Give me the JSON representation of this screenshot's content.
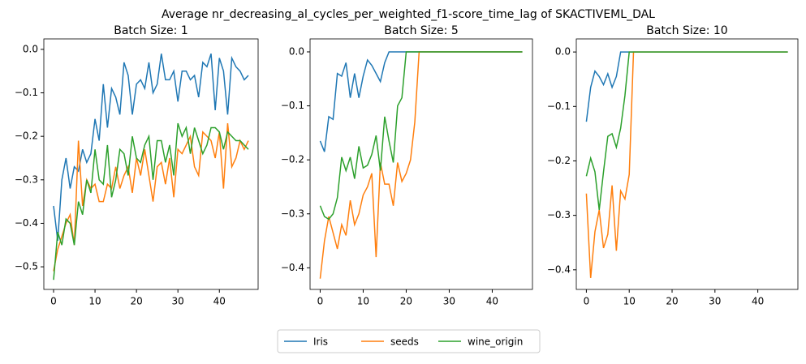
{
  "title": "Average nr_decreasing_al_cycles_per_weighted_f1-score_time_lag of SKACTIVEML_DAL",
  "legend": "lower center",
  "chart_data": [
    {
      "type": "line",
      "title": "Batch Size: 1",
      "x": [
        0,
        1,
        2,
        3,
        4,
        5,
        6,
        7,
        8,
        9,
        10,
        11,
        12,
        13,
        14,
        15,
        16,
        17,
        18,
        19,
        20,
        21,
        22,
        23,
        24,
        25,
        26,
        27,
        28,
        29,
        30,
        31,
        32,
        33,
        34,
        35,
        36,
        37,
        38,
        39,
        40,
        41,
        42,
        43,
        44,
        45,
        46,
        47
      ],
      "xlim": [
        -2.35,
        49.35
      ],
      "xticks": [
        0,
        10,
        20,
        30,
        40
      ],
      "ylim": [
        -0.552,
        0.024
      ],
      "yticks": [
        {
          "value": -0.5,
          "label": "−0.5"
        },
        {
          "value": -0.4,
          "label": "−0.4"
        },
        {
          "value": -0.3,
          "label": "−0.3"
        },
        {
          "value": -0.2,
          "label": "−0.2"
        },
        {
          "value": -0.1,
          "label": "−0.1"
        },
        {
          "value": 0,
          "label": "0.0"
        }
      ],
      "series": [
        {
          "name": "Iris",
          "color": "#1f77b4",
          "values": [
            -0.36,
            -0.44,
            -0.3,
            -0.25,
            -0.32,
            -0.27,
            -0.28,
            -0.23,
            -0.26,
            -0.24,
            -0.16,
            -0.21,
            -0.08,
            -0.18,
            -0.09,
            -0.11,
            -0.15,
            -0.03,
            -0.06,
            -0.15,
            -0.08,
            -0.07,
            -0.09,
            -0.03,
            -0.1,
            -0.08,
            -0.01,
            -0.07,
            -0.07,
            -0.05,
            -0.12,
            -0.05,
            -0.05,
            -0.07,
            -0.06,
            -0.11,
            -0.03,
            -0.04,
            -0.01,
            -0.14,
            -0.02,
            -0.05,
            -0.15,
            -0.02,
            -0.04,
            -0.05,
            -0.07,
            -0.06
          ]
        },
        {
          "name": "seeds",
          "color": "#ff7f0e",
          "values": [
            -0.51,
            -0.46,
            -0.43,
            -0.4,
            -0.38,
            -0.45,
            -0.21,
            -0.36,
            -0.3,
            -0.32,
            -0.31,
            -0.35,
            -0.35,
            -0.31,
            -0.32,
            -0.27,
            -0.32,
            -0.29,
            -0.27,
            -0.33,
            -0.25,
            -0.29,
            -0.23,
            -0.29,
            -0.35,
            -0.27,
            -0.26,
            -0.31,
            -0.25,
            -0.34,
            -0.23,
            -0.24,
            -0.22,
            -0.2,
            -0.27,
            -0.29,
            -0.19,
            -0.2,
            -0.21,
            -0.25,
            -0.19,
            -0.32,
            -0.17,
            -0.27,
            -0.25,
            -0.21,
            -0.23,
            -0.21
          ]
        },
        {
          "name": "wine_origin",
          "color": "#2ca02c",
          "values": [
            -0.53,
            -0.42,
            -0.45,
            -0.39,
            -0.4,
            -0.45,
            -0.35,
            -0.38,
            -0.3,
            -0.33,
            -0.23,
            -0.3,
            -0.31,
            -0.22,
            -0.34,
            -0.3,
            -0.23,
            -0.24,
            -0.29,
            -0.2,
            -0.25,
            -0.26,
            -0.22,
            -0.2,
            -0.3,
            -0.21,
            -0.21,
            -0.26,
            -0.22,
            -0.29,
            -0.17,
            -0.2,
            -0.18,
            -0.24,
            -0.18,
            -0.21,
            -0.24,
            -0.22,
            -0.18,
            -0.18,
            -0.19,
            -0.23,
            -0.19,
            -0.2,
            -0.21,
            -0.21,
            -0.22,
            -0.23
          ]
        }
      ]
    },
    {
      "type": "line",
      "title": "Batch Size: 5",
      "x": [
        0,
        1,
        2,
        3,
        4,
        5,
        6,
        7,
        8,
        9,
        10,
        11,
        12,
        13,
        14,
        15,
        16,
        17,
        18,
        19,
        20,
        21,
        22,
        23,
        24,
        25,
        26,
        27,
        28,
        29,
        30,
        31,
        32,
        33,
        34,
        35,
        36,
        37,
        38,
        39,
        40,
        41,
        42,
        43,
        44,
        45,
        46,
        47
      ],
      "xlim": [
        -2.35,
        49.35
      ],
      "xticks": [
        0,
        10,
        20,
        30,
        40
      ],
      "ylim": [
        -0.44,
        0.024
      ],
      "yticks": [
        {
          "value": -0.4,
          "label": "−0.4"
        },
        {
          "value": -0.3,
          "label": "−0.3"
        },
        {
          "value": -0.2,
          "label": "−0.2"
        },
        {
          "value": -0.1,
          "label": "−0.1"
        },
        {
          "value": 0,
          "label": "0.0"
        }
      ],
      "series": [
        {
          "name": "Iris",
          "color": "#1f77b4",
          "values": [
            -0.165,
            -0.185,
            -0.12,
            -0.125,
            -0.04,
            -0.045,
            -0.02,
            -0.085,
            -0.04,
            -0.085,
            -0.045,
            -0.015,
            -0.025,
            -0.04,
            -0.055,
            -0.02,
            0,
            0,
            0,
            0,
            0,
            0,
            0,
            0,
            0,
            0,
            0,
            0,
            0,
            0,
            0,
            0,
            0,
            0,
            0,
            0,
            0,
            0,
            0,
            0,
            0,
            0,
            0,
            0,
            0,
            0,
            0,
            0
          ]
        },
        {
          "name": "seeds",
          "color": "#ff7f0e",
          "values": [
            -0.42,
            -0.35,
            -0.305,
            -0.335,
            -0.365,
            -0.32,
            -0.34,
            -0.275,
            -0.32,
            -0.3,
            -0.265,
            -0.25,
            -0.225,
            -0.38,
            -0.205,
            -0.245,
            -0.245,
            -0.285,
            -0.205,
            -0.24,
            -0.225,
            -0.2,
            -0.13,
            0,
            0,
            0,
            0,
            0,
            0,
            0,
            0,
            0,
            0,
            0,
            0,
            0,
            0,
            0,
            0,
            0,
            0,
            0,
            0,
            0,
            0,
            0,
            0,
            0
          ]
        },
        {
          "name": "wine_origin",
          "color": "#2ca02c",
          "values": [
            -0.285,
            -0.305,
            -0.31,
            -0.3,
            -0.27,
            -0.195,
            -0.22,
            -0.195,
            -0.235,
            -0.175,
            -0.215,
            -0.21,
            -0.19,
            -0.155,
            -0.22,
            -0.12,
            -0.165,
            -0.205,
            -0.1,
            -0.085,
            0,
            0,
            0,
            0,
            0,
            0,
            0,
            0,
            0,
            0,
            0,
            0,
            0,
            0,
            0,
            0,
            0,
            0,
            0,
            0,
            0,
            0,
            0,
            0,
            0,
            0,
            0,
            0
          ]
        }
      ]
    },
    {
      "type": "line",
      "title": "Batch Size: 10",
      "x": [
        0,
        1,
        2,
        3,
        4,
        5,
        6,
        7,
        8,
        9,
        10,
        11,
        12,
        13,
        14,
        15,
        16,
        17,
        18,
        19,
        20,
        21,
        22,
        23,
        24,
        25,
        26,
        27,
        28,
        29,
        30,
        31,
        32,
        33,
        34,
        35,
        36,
        37,
        38,
        39,
        40,
        41,
        42,
        43,
        44,
        45,
        46,
        47
      ],
      "xlim": [
        -2.35,
        49.35
      ],
      "xticks": [
        0,
        10,
        20,
        30,
        40
      ],
      "ylim": [
        -0.436,
        0.024
      ],
      "yticks": [
        {
          "value": -0.4,
          "label": "−0.4"
        },
        {
          "value": -0.3,
          "label": "−0.3"
        },
        {
          "value": -0.2,
          "label": "−0.2"
        },
        {
          "value": -0.1,
          "label": "−0.1"
        },
        {
          "value": 0,
          "label": "0.0"
        }
      ],
      "series": [
        {
          "name": "Iris",
          "color": "#1f77b4",
          "values": [
            -0.128,
            -0.065,
            -0.035,
            -0.045,
            -0.06,
            -0.04,
            -0.065,
            -0.045,
            0,
            0,
            0,
            0,
            0,
            0,
            0,
            0,
            0,
            0,
            0,
            0,
            0,
            0,
            0,
            0,
            0,
            0,
            0,
            0,
            0,
            0,
            0,
            0,
            0,
            0,
            0,
            0,
            0,
            0,
            0,
            0,
            0,
            0,
            0,
            0,
            0,
            0,
            0,
            0
          ]
        },
        {
          "name": "seeds",
          "color": "#ff7f0e",
          "values": [
            -0.26,
            -0.415,
            -0.33,
            -0.29,
            -0.36,
            -0.335,
            -0.245,
            -0.365,
            -0.255,
            -0.27,
            -0.225,
            0,
            0,
            0,
            0,
            0,
            0,
            0,
            0,
            0,
            0,
            0,
            0,
            0,
            0,
            0,
            0,
            0,
            0,
            0,
            0,
            0,
            0,
            0,
            0,
            0,
            0,
            0,
            0,
            0,
            0,
            0,
            0,
            0,
            0,
            0,
            0,
            0
          ]
        },
        {
          "name": "wine_origin",
          "color": "#2ca02c",
          "values": [
            -0.228,
            -0.195,
            -0.22,
            -0.29,
            -0.22,
            -0.155,
            -0.15,
            -0.175,
            -0.14,
            -0.08,
            0,
            0,
            0,
            0,
            0,
            0,
            0,
            0,
            0,
            0,
            0,
            0,
            0,
            0,
            0,
            0,
            0,
            0,
            0,
            0,
            0,
            0,
            0,
            0,
            0,
            0,
            0,
            0,
            0,
            0,
            0,
            0,
            0,
            0,
            0,
            0,
            0,
            0
          ]
        }
      ]
    }
  ]
}
